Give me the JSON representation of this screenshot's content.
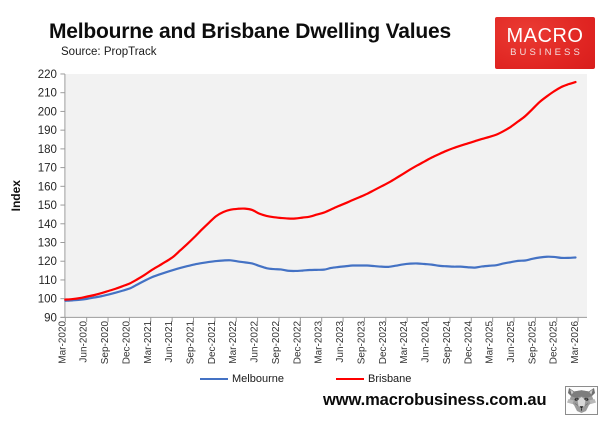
{
  "header": {
    "title": "Melbourne and Brisbane Dwelling Values",
    "source": "Source: PropTrack"
  },
  "logo": {
    "line1": "MACRO",
    "line2": "BUSINESS",
    "bg_color": "#e01f1f",
    "text_color": "#ffffff"
  },
  "footer": {
    "url": "www.macrobusiness.com.au"
  },
  "chart_data": {
    "type": "line",
    "title": "Melbourne and Brisbane Dwelling Values",
    "subtitle": "Source: PropTrack",
    "xlabel": "",
    "ylabel": "Index",
    "ylim": [
      90,
      220
    ],
    "y_ticks": [
      90,
      100,
      110,
      120,
      130,
      140,
      150,
      160,
      170,
      180,
      190,
      200,
      210,
      220
    ],
    "x_tick_labels": [
      "Mar-2020",
      "Jun-2020",
      "Sep-2020",
      "Dec-2020",
      "Mar-2021",
      "Jun-2021",
      "Sep-2021",
      "Dec-2021",
      "Mar-2022",
      "Jun-2022",
      "Sep-2022",
      "Dec-2022",
      "Mar-2023",
      "Jun-2023",
      "Sep-2023",
      "Dec-2023",
      "Mar-2024",
      "Jun-2024",
      "Sep-2024",
      "Dec-2024",
      "Mar-2025",
      "Jun-2025",
      "Sep-2025",
      "Dec-2025",
      "Mar-2026"
    ],
    "x": [
      "Mar-2020",
      "Apr-2020",
      "May-2020",
      "Jun-2020",
      "Jul-2020",
      "Aug-2020",
      "Sep-2020",
      "Oct-2020",
      "Nov-2020",
      "Dec-2020",
      "Jan-2021",
      "Feb-2021",
      "Mar-2021",
      "Apr-2021",
      "May-2021",
      "Jun-2021",
      "Jul-2021",
      "Aug-2021",
      "Sep-2021",
      "Oct-2021",
      "Nov-2021",
      "Dec-2021",
      "Jan-2022",
      "Feb-2022",
      "Mar-2022",
      "Apr-2022",
      "May-2022",
      "Jun-2022",
      "Jul-2022",
      "Aug-2022",
      "Sep-2022",
      "Oct-2022",
      "Nov-2022",
      "Dec-2022",
      "Jan-2023",
      "Feb-2023",
      "Mar-2023",
      "Apr-2023",
      "May-2023",
      "Jun-2023",
      "Jul-2023",
      "Aug-2023",
      "Sep-2023",
      "Oct-2023",
      "Nov-2023",
      "Dec-2023",
      "Jan-2024",
      "Feb-2024",
      "Mar-2024",
      "Apr-2024",
      "May-2024",
      "Jun-2024",
      "Jul-2024",
      "Aug-2024",
      "Sep-2024",
      "Oct-2024",
      "Nov-2024",
      "Dec-2024",
      "Jan-2025",
      "Feb-2025",
      "Mar-2025",
      "Apr-2025",
      "May-2025",
      "Jun-2025",
      "Jul-2025",
      "Aug-2025",
      "Sep-2025",
      "Oct-2025",
      "Nov-2025",
      "Dec-2025",
      "Jan-2026",
      "Feb-2026"
    ],
    "grid": false,
    "plot_bg_color": "#f2f2f2",
    "legend_position": "bottom",
    "series": [
      {
        "name": "Melbourne",
        "color": "#4472c4",
        "values": [
          98.9,
          99.1,
          99.4,
          99.9,
          100.6,
          101.3,
          102.2,
          103.2,
          104.3,
          105.5,
          107.5,
          109.5,
          111.4,
          112.8,
          114.1,
          115.3,
          116.4,
          117.4,
          118.3,
          119.0,
          119.6,
          120.1,
          120.4,
          120.5,
          119.9,
          119.4,
          118.8,
          117.5,
          116.3,
          115.8,
          115.6,
          114.9,
          114.8,
          115.0,
          115.3,
          115.4,
          115.5,
          116.4,
          116.9,
          117.3,
          117.7,
          117.7,
          117.7,
          117.4,
          117.1,
          117.0,
          117.6,
          118.3,
          118.7,
          118.8,
          118.5,
          118.2,
          117.6,
          117.3,
          117.1,
          117.1,
          116.8,
          116.6,
          117.2,
          117.6,
          117.9,
          118.8,
          119.5,
          120.2,
          120.4,
          121.3,
          122.0,
          122.4,
          122.3,
          121.8,
          121.8,
          122.0
        ]
      },
      {
        "name": "Brisbane",
        "color": "#fe0000",
        "values": [
          99.5,
          99.8,
          100.3,
          101.1,
          101.9,
          102.9,
          104.1,
          105.3,
          106.7,
          108.2,
          110.3,
          112.6,
          115.2,
          117.5,
          119.8,
          122.3,
          125.8,
          129.3,
          133.0,
          136.9,
          140.6,
          144.1,
          146.3,
          147.5,
          148.0,
          148.1,
          147.4,
          145.4,
          144.2,
          143.5,
          143.1,
          142.8,
          142.8,
          143.3,
          143.8,
          144.9,
          146.0,
          147.7,
          149.4,
          151.0,
          152.7,
          154.3,
          156.0,
          158.0,
          160.0,
          162.0,
          164.3,
          166.6,
          169.0,
          171.2,
          173.3,
          175.4,
          177.2,
          178.9,
          180.4,
          181.7,
          182.9,
          184.1,
          185.3,
          186.4,
          187.6,
          189.5,
          191.8,
          194.6,
          197.5,
          201.2,
          205.0,
          208.0,
          210.7,
          213.0,
          214.5,
          215.7
        ]
      }
    ]
  }
}
